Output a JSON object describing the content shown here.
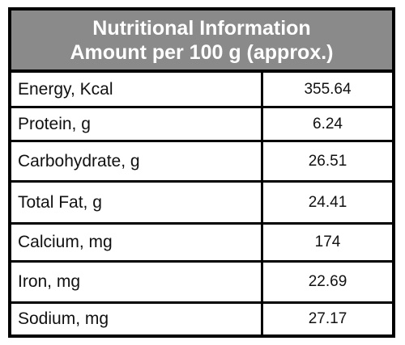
{
  "header": {
    "line1": "Nutritional Information",
    "line2": "Amount per 100 g (approx.)"
  },
  "rows": [
    {
      "label": "Energy, Kcal",
      "value": "355.64"
    },
    {
      "label": "Protein, g",
      "value": "6.24"
    },
    {
      "label": "Carbohydrate, g",
      "value": "26.51"
    },
    {
      "label": "Total Fat, g",
      "value": "24.41"
    },
    {
      "label": "Calcium, mg",
      "value": "174"
    },
    {
      "label": "Iron, mg",
      "value": "22.69"
    },
    {
      "label": "Sodium, mg",
      "value": "27.17"
    }
  ],
  "colors": {
    "header_background": "#8a8a8a",
    "header_text": "#ffffff",
    "border": "#000000"
  }
}
